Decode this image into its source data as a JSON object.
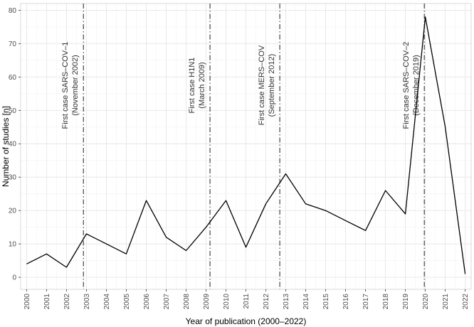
{
  "chart_data": {
    "type": "line",
    "xlabel": "Year of publication (2000–2022)",
    "ylabel": "Number of studies [n]",
    "ylim": [
      0,
      80
    ],
    "yticks": [
      0,
      10,
      20,
      30,
      40,
      50,
      60,
      70,
      80
    ],
    "xticks": [
      2000,
      2001,
      2002,
      2003,
      2004,
      2005,
      2006,
      2007,
      2008,
      2009,
      2010,
      2011,
      2012,
      2013,
      2014,
      2015,
      2016,
      2017,
      2018,
      2019,
      2020,
      2021,
      2022
    ],
    "grid": true,
    "series": [
      {
        "color": "#000000",
        "x": [
          2000,
          2001,
          2002,
          2003,
          2004,
          2005,
          2006,
          2007,
          2008,
          2009,
          2010,
          2011,
          2012,
          2013,
          2014,
          2015,
          2016,
          2017,
          2018,
          2019,
          2020,
          2021,
          2022
        ],
        "values": [
          4,
          7,
          3,
          13,
          10,
          7,
          23,
          12,
          8,
          15,
          23,
          9,
          22,
          31,
          22,
          20,
          17,
          14,
          26,
          19,
          78,
          45,
          1
        ]
      }
    ],
    "annotations": [
      {
        "x": 2002.85,
        "line1": "First case SARS–COV–1",
        "line2": "(November 2002)"
      },
      {
        "x": 2009.2,
        "line1": "First case H1N1",
        "line2": "(March 2009)"
      },
      {
        "x": 2012.7,
        "line1": "First case MERS–COV",
        "line2": "(September 2012)"
      },
      {
        "x": 2019.95,
        "line1": "First case SARS–COV–2",
        "line2": "(December 2019)"
      }
    ]
  }
}
